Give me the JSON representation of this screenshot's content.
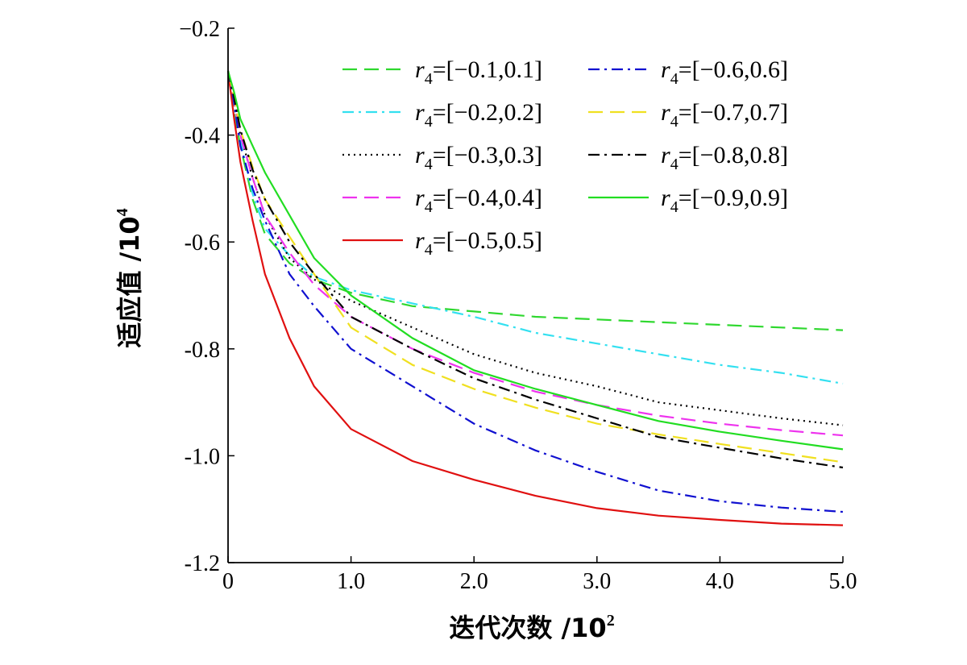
{
  "chart_data": {
    "type": "line",
    "xlabel": "迭代次数 /10",
    "xlabel_exponent": "2",
    "ylabel": "适应值 /10",
    "ylabel_exponent": "4",
    "xlim": [
      0,
      5.0
    ],
    "ylim": [
      -1.2,
      -0.2
    ],
    "x_ticks": [
      0,
      1.0,
      2.0,
      3.0,
      4.0,
      5.0
    ],
    "x_tick_labels": [
      "0",
      "1.0",
      "2.0",
      "3.0",
      "4.0",
      "5.0"
    ],
    "y_ticks": [
      -0.2,
      -0.4,
      -0.6,
      -0.8,
      -1.0,
      -1.2
    ],
    "y_tick_labels": [
      "−0.2",
      "-0.4",
      "-0.6",
      "-0.8",
      "-1.0",
      "-1.2"
    ],
    "grid": false,
    "legend_position": "top-right",
    "x": [
      0,
      0.05,
      0.1,
      0.2,
      0.3,
      0.5,
      0.7,
      1.0,
      1.5,
      2.0,
      2.5,
      3.0,
      3.5,
      4.0,
      4.5,
      5.0
    ],
    "series": [
      {
        "name": "r4=[−0.1,0.1]",
        "name_italic": "r",
        "name_sub": "4",
        "name_rest": "=[−0.1,0.1]",
        "color": "#2fd82f",
        "dash": "long-dash",
        "values": [
          -0.28,
          -0.36,
          -0.42,
          -0.52,
          -0.585,
          -0.64,
          -0.67,
          -0.695,
          -0.72,
          -0.73,
          -0.74,
          -0.745,
          -0.75,
          -0.755,
          -0.76,
          -0.765
        ]
      },
      {
        "name": "r4=[−0.2,0.2]",
        "name_italic": "r",
        "name_sub": "4",
        "name_rest": "=[−0.2,0.2]",
        "color": "#33e0f0",
        "dash": "dash-dot",
        "values": [
          -0.28,
          -0.35,
          -0.41,
          -0.51,
          -0.575,
          -0.625,
          -0.665,
          -0.69,
          -0.715,
          -0.74,
          -0.77,
          -0.79,
          -0.81,
          -0.83,
          -0.845,
          -0.865
        ]
      },
      {
        "name": "r4=[−0.3,0.3]",
        "name_italic": "r",
        "name_sub": "4",
        "name_rest": "=[−0.3,0.3]",
        "color": "#000000",
        "dash": "dotted",
        "values": [
          -0.28,
          -0.34,
          -0.4,
          -0.48,
          -0.55,
          -0.63,
          -0.67,
          -0.71,
          -0.76,
          -0.81,
          -0.845,
          -0.87,
          -0.9,
          -0.915,
          -0.93,
          -0.943
        ]
      },
      {
        "name": "r4=[−0.4,0.4]",
        "name_italic": "r",
        "name_sub": "4",
        "name_rest": "=[−0.4,0.4]",
        "color": "#ee33ee",
        "dash": "long-dash",
        "values": [
          -0.28,
          -0.34,
          -0.4,
          -0.48,
          -0.55,
          -0.62,
          -0.68,
          -0.74,
          -0.8,
          -0.845,
          -0.88,
          -0.905,
          -0.925,
          -0.94,
          -0.952,
          -0.962
        ]
      },
      {
        "name": "r4=[−0.5,0.5]",
        "name_italic": "r",
        "name_sub": "4",
        "name_rest": "=[−0.5,0.5]",
        "color": "#e01010",
        "dash": "solid",
        "values": [
          -0.28,
          -0.37,
          -0.45,
          -0.56,
          -0.66,
          -0.78,
          -0.87,
          -0.95,
          -1.01,
          -1.045,
          -1.075,
          -1.098,
          -1.112,
          -1.12,
          -1.127,
          -1.13
        ]
      },
      {
        "name": "r4=[−0.6,0.6]",
        "name_italic": "r",
        "name_sub": "4",
        "name_rest": "=[−0.6,0.6]",
        "color": "#1010d0",
        "dash": "dash-dot",
        "values": [
          -0.28,
          -0.34,
          -0.42,
          -0.5,
          -0.56,
          -0.66,
          -0.72,
          -0.8,
          -0.87,
          -0.94,
          -0.99,
          -1.03,
          -1.065,
          -1.085,
          -1.097,
          -1.105
        ]
      },
      {
        "name": "r4=[−0.7,0.7]",
        "name_italic": "r",
        "name_sub": "4",
        "name_rest": "=[−0.7,0.7]",
        "color": "#f0e020",
        "dash": "long-dash",
        "values": [
          -0.28,
          -0.33,
          -0.39,
          -0.46,
          -0.52,
          -0.59,
          -0.66,
          -0.76,
          -0.83,
          -0.875,
          -0.91,
          -0.94,
          -0.96,
          -0.978,
          -0.995,
          -1.012
        ]
      },
      {
        "name": "r4=[−0.8,0.8]",
        "name_italic": "r",
        "name_sub": "4",
        "name_rest": "=[−0.8,0.8]",
        "color": "#000000",
        "dash": "dash-dot",
        "values": [
          -0.28,
          -0.33,
          -0.39,
          -0.465,
          -0.52,
          -0.6,
          -0.66,
          -0.74,
          -0.8,
          -0.855,
          -0.895,
          -0.93,
          -0.965,
          -0.985,
          -1.005,
          -1.022
        ]
      },
      {
        "name": "r4=[−0.9,0.9]",
        "name_italic": "r",
        "name_sub": "4",
        "name_rest": "=[−0.9,0.9]",
        "color": "#22dd22",
        "dash": "solid",
        "values": [
          -0.28,
          -0.32,
          -0.37,
          -0.42,
          -0.47,
          -0.55,
          -0.63,
          -0.7,
          -0.78,
          -0.84,
          -0.875,
          -0.905,
          -0.935,
          -0.955,
          -0.972,
          -0.988
        ]
      }
    ]
  }
}
